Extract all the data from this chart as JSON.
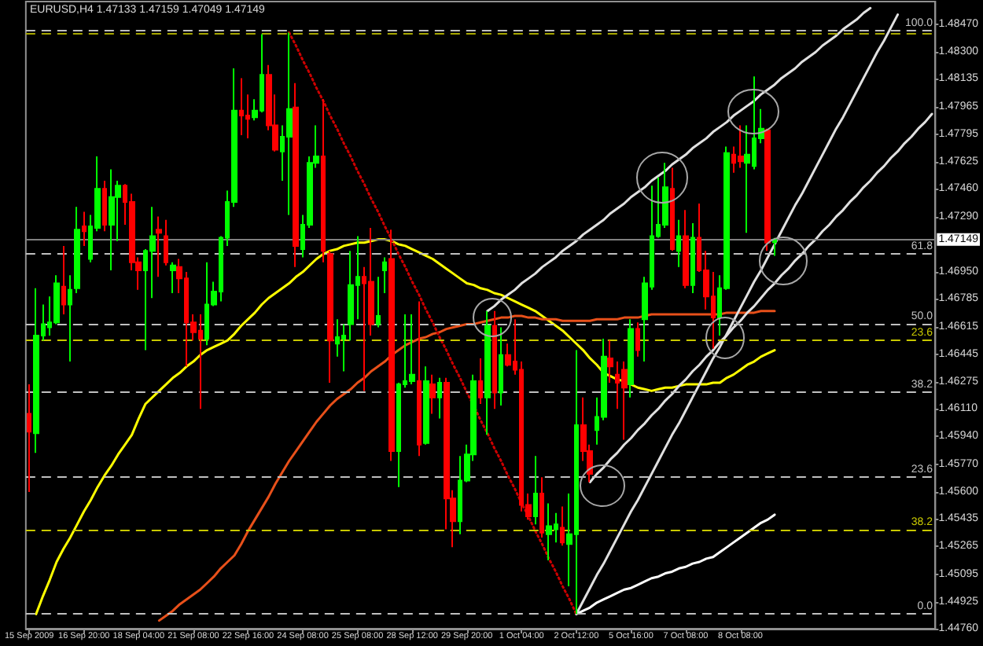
{
  "chart_data": {
    "type": "candlestick",
    "title": "EURUSD,H4 1.47133 1.47159 1.47049 1.47149",
    "categories": [
      "15 Sep 2009",
      null,
      null,
      null,
      null,
      null,
      null,
      null,
      "16 Sep 20:00",
      null,
      null,
      null,
      null,
      null,
      null,
      null,
      "18 Sep 04:00",
      null,
      null,
      null,
      null,
      null,
      null,
      null,
      "21 Sep 08:00",
      null,
      null,
      null,
      null,
      null,
      null,
      null,
      "22 Sep 16:00",
      null,
      null,
      null,
      null,
      null,
      null,
      null,
      "24 Sep 08:00",
      null,
      null,
      null,
      null,
      null,
      null,
      null,
      "25 Sep 08:00",
      null,
      null,
      null,
      null,
      null,
      null,
      null,
      "28 Sep 12:00",
      null,
      null,
      null,
      null,
      null,
      null,
      null,
      "29 Sep 20:00",
      null,
      null,
      null,
      null,
      null,
      null,
      null,
      "1 Oct 04:00",
      null,
      null,
      null,
      null,
      null,
      null,
      null,
      "2 Oct 12:00",
      null,
      null,
      null,
      null,
      null,
      null,
      null,
      "5 Oct 16:00",
      null,
      null,
      null,
      null,
      null,
      null,
      null,
      "7 Oct 08:00",
      null,
      null,
      null,
      null,
      null,
      null,
      null,
      "8 Oct 08:00",
      null,
      null,
      null,
      null,
      null,
      null,
      null,
      null,
      null,
      null,
      null,
      null,
      null,
      null,
      null,
      null,
      null,
      null,
      null,
      null,
      null,
      null,
      null,
      null,
      null,
      null,
      null,
      null
    ],
    "ohlc": [
      [
        1.4608,
        1.4626,
        1.456,
        1.4597
      ],
      [
        1.4596,
        1.4685,
        1.4584,
        1.4656
      ],
      [
        1.4656,
        1.4675,
        1.4653,
        1.4663
      ],
      [
        1.4661,
        1.468,
        1.4656,
        1.4664
      ],
      [
        1.4664,
        1.4693,
        1.4663,
        1.4688
      ],
      [
        1.4686,
        1.4711,
        1.4669,
        1.4675
      ],
      [
        1.4675,
        1.4693,
        1.464,
        1.4684
      ],
      [
        1.4685,
        1.4735,
        1.4682,
        1.4721
      ],
      [
        1.4723,
        1.4732,
        1.4711,
        1.472
      ],
      [
        1.4703,
        1.473,
        1.4701,
        1.4723
      ],
      [
        1.4722,
        1.4766,
        1.472,
        1.4746
      ],
      [
        1.4746,
        1.4751,
        1.472,
        1.4724
      ],
      [
        1.4724,
        1.4758,
        1.4696,
        1.4741
      ],
      [
        1.4741,
        1.4751,
        1.4714,
        1.4748
      ],
      [
        1.4748,
        1.4749,
        1.4724,
        1.4738
      ],
      [
        1.4738,
        1.4743,
        1.4696,
        1.4701
      ],
      [
        1.4701,
        1.4704,
        1.4684,
        1.4696
      ],
      [
        1.4696,
        1.4709,
        1.4647,
        1.4708
      ],
      [
        1.4708,
        1.4735,
        1.4679,
        1.4717
      ],
      [
        1.4721,
        1.4729,
        1.4692,
        1.4719
      ],
      [
        1.4717,
        1.4727,
        1.4699,
        1.4701
      ],
      [
        1.4696,
        1.4701,
        1.4682,
        1.4699
      ],
      [
        1.4698,
        1.4703,
        1.4682,
        1.4691
      ],
      [
        1.4691,
        1.4695,
        1.4637,
        1.4664
      ],
      [
        1.4664,
        1.4669,
        1.4653,
        1.4658
      ],
      [
        1.4659,
        1.4669,
        1.4611,
        1.4654
      ],
      [
        1.4654,
        1.4701,
        1.465,
        1.4675
      ],
      [
        1.4675,
        1.4689,
        1.4674,
        1.4683
      ],
      [
        1.4683,
        1.4717,
        1.4677,
        1.4716
      ],
      [
        1.4716,
        1.4745,
        1.4711,
        1.4738
      ],
      [
        1.4738,
        1.482,
        1.4735,
        1.4794
      ],
      [
        1.4794,
        1.4814,
        1.4779,
        1.4791
      ],
      [
        1.4791,
        1.4804,
        1.4777,
        1.4789
      ],
      [
        1.479,
        1.4801,
        1.4788,
        1.4794
      ],
      [
        1.4794,
        1.4841,
        1.4793,
        1.4816
      ],
      [
        1.4816,
        1.4822,
        1.4782,
        1.4785
      ],
      [
        1.4785,
        1.4804,
        1.4769,
        1.477
      ],
      [
        1.4769,
        1.4785,
        1.4751,
        1.4778
      ],
      [
        1.4778,
        1.4842,
        1.473,
        1.4795
      ],
      [
        1.4796,
        1.4811,
        1.4698,
        1.4711
      ],
      [
        1.4709,
        1.473,
        1.4704,
        1.4724
      ],
      [
        1.4724,
        1.4766,
        1.4722,
        1.4762
      ],
      [
        1.4762,
        1.4785,
        1.4759,
        1.4766
      ],
      [
        1.4766,
        1.4801,
        1.4701,
        1.4708
      ],
      [
        1.4706,
        1.4708,
        1.4627,
        1.4653
      ],
      [
        1.4651,
        1.4666,
        1.4643,
        1.4655
      ],
      [
        1.4654,
        1.4663,
        1.4634,
        1.4656
      ],
      [
        1.4663,
        1.4708,
        1.4653,
        1.4687
      ],
      [
        1.4687,
        1.4717,
        1.4666,
        1.4692
      ],
      [
        1.4692,
        1.4698,
        1.4622,
        1.4688
      ],
      [
        1.4689,
        1.4722,
        1.4656,
        1.4663
      ],
      [
        1.4663,
        1.4692,
        1.4661,
        1.4668
      ],
      [
        1.4696,
        1.4704,
        1.4682,
        1.4701
      ],
      [
        1.4703,
        1.4721,
        1.4579,
        1.4585
      ],
      [
        1.4585,
        1.4627,
        1.4563,
        1.4626
      ],
      [
        1.4626,
        1.4669,
        1.4624,
        1.4628
      ],
      [
        1.4628,
        1.4669,
        1.4626,
        1.4632
      ],
      [
        1.4628,
        1.4677,
        1.4582,
        1.4589
      ],
      [
        1.459,
        1.4637,
        1.4589,
        1.4628
      ],
      [
        1.4626,
        1.4632,
        1.4608,
        1.4618
      ],
      [
        1.4618,
        1.463,
        1.4605,
        1.4627
      ],
      [
        1.4627,
        1.463,
        1.4537,
        1.4556
      ],
      [
        1.4556,
        1.4561,
        1.4526,
        1.4542
      ],
      [
        1.4542,
        1.4582,
        1.4534,
        1.4567
      ],
      [
        1.4567,
        1.4589,
        1.4566,
        1.4583
      ],
      [
        1.4583,
        1.4632,
        1.4579,
        1.4628
      ],
      [
        1.4628,
        1.4642,
        1.4614,
        1.4618
      ],
      [
        1.4618,
        1.4671,
        1.4595,
        1.4662
      ],
      [
        1.4662,
        1.4671,
        1.4611,
        1.4621
      ],
      [
        1.4621,
        1.4661,
        1.4613,
        1.4644
      ],
      [
        1.4644,
        1.4651,
        1.4637,
        1.4638
      ],
      [
        1.464,
        1.4666,
        1.4632,
        1.4635
      ],
      [
        1.4635,
        1.464,
        1.4548,
        1.4552
      ],
      [
        1.4552,
        1.4559,
        1.4543,
        1.4545
      ],
      [
        1.4545,
        1.4582,
        1.454,
        1.4559
      ],
      [
        1.4559,
        1.4569,
        1.4532,
        1.4535
      ],
      [
        1.4534,
        1.4553,
        1.4518,
        1.4539
      ],
      [
        1.4537,
        1.4547,
        1.4529,
        1.454
      ],
      [
        1.4538,
        1.4551,
        1.4527,
        1.4529
      ],
      [
        1.4528,
        1.4559,
        1.4502,
        1.4534
      ],
      [
        1.4534,
        1.4647,
        1.4485,
        1.4601
      ],
      [
        1.4601,
        1.4618,
        1.4579,
        1.4585
      ],
      [
        1.4585,
        1.4589,
        1.4566,
        1.4571
      ],
      [
        1.4598,
        1.4618,
        1.4589,
        1.4606
      ],
      [
        1.4606,
        1.4654,
        1.4604,
        1.4643
      ],
      [
        1.4642,
        1.4653,
        1.4627,
        1.4637
      ],
      [
        1.4632,
        1.464,
        1.4611,
        1.4627
      ],
      [
        1.4635,
        1.464,
        1.4592,
        1.4624
      ],
      [
        1.4626,
        1.4666,
        1.4618,
        1.466
      ],
      [
        1.466,
        1.4664,
        1.4643,
        1.4647
      ],
      [
        1.4666,
        1.4692,
        1.464,
        1.4688
      ],
      [
        1.4686,
        1.4748,
        1.4684,
        1.4717
      ],
      [
        1.4717,
        1.4753,
        1.4716,
        1.4724
      ],
      [
        1.4724,
        1.4762,
        1.4722,
        1.4747
      ],
      [
        1.4746,
        1.4759,
        1.4708,
        1.4709
      ],
      [
        1.4708,
        1.4727,
        1.4698,
        1.4717
      ],
      [
        1.4717,
        1.4733,
        1.4685,
        1.4687
      ],
      [
        1.4687,
        1.4725,
        1.4682,
        1.4716
      ],
      [
        1.4716,
        1.4737,
        1.4695,
        1.4696
      ],
      [
        1.4696,
        1.4708,
        1.4672,
        1.468
      ],
      [
        1.468,
        1.4695,
        1.4648,
        1.4667
      ],
      [
        1.4667,
        1.4693,
        1.4656,
        1.4685
      ],
      [
        1.4685,
        1.4772,
        1.4684,
        1.4768
      ],
      [
        1.4767,
        1.4772,
        1.4756,
        1.4762
      ],
      [
        1.4766,
        1.4785,
        1.4759,
        1.4763
      ],
      [
        1.4762,
        1.4785,
        1.4719,
        1.4767
      ],
      [
        1.476,
        1.4815,
        1.4758,
        1.4777
      ],
      [
        1.4777,
        1.4795,
        1.4774,
        1.4783
      ],
      [
        1.4782,
        1.4783,
        1.4708,
        1.4713
      ],
      [
        1.47133,
        1.47159,
        1.47049,
        1.47149
      ],
      null,
      null,
      null,
      null,
      null,
      null,
      null,
      null,
      null,
      null,
      null,
      null,
      null,
      null,
      null,
      null,
      null,
      null,
      null,
      null,
      null,
      null,
      null
    ],
    "colors": [
      "#ff0000",
      "#00ff00",
      "#00ff00",
      "#00ff00",
      "#00ff00",
      "#ff0000",
      "#00ff00",
      "#00ff00",
      "#ff0000",
      "#00ff00",
      "#00ff00",
      "#ff0000",
      "#00ff00",
      "#00ff00",
      "#ff0000",
      "#ff0000",
      "#ff0000",
      "#00ff00",
      "#00ff00",
      "#ff0000",
      "#ff0000",
      "#00ff00",
      "#ff0000",
      "#ff0000",
      "#ff0000",
      "#ff0000",
      "#00ff00",
      "#00ff00",
      "#00ff00",
      "#00ff00",
      "#00ff00",
      "#ff0000",
      "#ff0000",
      "#00ff00",
      "#00ff00",
      "#ff0000",
      "#ff0000",
      "#00ff00",
      "#00ff00",
      "#ff0000",
      "#00ff00",
      "#00ff00",
      "#00ff00",
      "#ff0000",
      "#ff0000",
      "#00ff00",
      "#00ff00",
      "#00ff00",
      "#00ff00",
      "#ff0000",
      "#ff0000",
      "#00ff00",
      "#00ff00",
      "#ff0000",
      "#00ff00",
      "#00ff00",
      "#00ff00",
      "#ff0000",
      "#00ff00",
      "#ff0000",
      "#00ff00",
      "#ff0000",
      "#ff0000",
      "#00ff00",
      "#00ff00",
      "#00ff00",
      "#ff0000",
      "#00ff00",
      "#ff0000",
      "#00ff00",
      "#ff0000",
      "#ff0000",
      "#ff0000",
      "#ff0000",
      "#00ff00",
      "#ff0000",
      "#00ff00",
      "#00ff00",
      "#ff0000",
      "#00ff00",
      "#00ff00",
      "#ff0000",
      "#ff0000",
      "#00ff00",
      "#00ff00",
      "#ff0000",
      "#ff0000",
      "#ff0000",
      "#00ff00",
      "#ff0000",
      "#00ff00",
      "#00ff00",
      "#00ff00",
      "#00ff00",
      "#ff0000",
      "#00ff00",
      "#ff0000",
      "#00ff00",
      "#ff0000",
      "#ff0000",
      "#ff0000",
      "#00ff00",
      "#00ff00",
      "#ff0000",
      "#ff0000",
      "#00ff00",
      "#00ff00",
      "#00ff00",
      "#ff0000",
      "#00ff00",
      null,
      null,
      null,
      null,
      null,
      null,
      null,
      null,
      null,
      null,
      null,
      null,
      null,
      null,
      null,
      null,
      null,
      null,
      null,
      null,
      null,
      null,
      null
    ],
    "ylim": [
      1.4476,
      1.4861
    ],
    "yticks": [
      {
        "value": 1.4847,
        "label": "1.48470"
      },
      {
        "value": 1.483,
        "label": "1.48300"
      },
      1.48135,
      1.47965,
      1.47795,
      1.47625,
      {
        "value": 1.4746,
        "label": "1.47460"
      },
      {
        "value": 1.4729,
        "label": "1.47290"
      },
      {
        "value": 1.4695,
        "label": "1.46950"
      },
      1.46785,
      1.46615,
      1.46445,
      1.46275,
      {
        "value": 1.4611,
        "label": "1.46110"
      },
      {
        "value": 1.4594,
        "label": "1.45940"
      },
      {
        "value": 1.4577,
        "label": "1.45770"
      },
      {
        "value": 1.456,
        "label": "1.45600"
      },
      1.45435,
      1.45265,
      1.45095,
      1.44925,
      {
        "value": 1.4476,
        "label": "1.44760"
      }
    ],
    "series": [
      {
        "type": "line",
        "color": "#ffff00",
        "values": [
          null,
          1.4485,
          1.4496,
          1.4506,
          1.4517,
          1.4525,
          1.4532,
          1.454,
          1.4548,
          1.4555,
          1.4563,
          1.457,
          1.4576,
          1.4583,
          1.4589,
          1.4595,
          1.4605,
          1.4614,
          1.4618,
          1.4622,
          1.4626,
          1.463,
          1.4633,
          1.4637,
          1.464,
          1.4644,
          1.4647,
          1.4649,
          1.4651,
          1.4653,
          1.4657,
          1.4662,
          1.4666,
          1.467,
          1.4675,
          1.4679,
          1.4682,
          1.4685,
          1.4688,
          1.4692,
          1.4695,
          1.4699,
          1.4703,
          1.4706,
          1.4708,
          1.4709,
          1.4711,
          1.4712,
          1.4713,
          1.4713,
          1.4714,
          1.4715,
          1.4715,
          1.4714,
          1.4712,
          1.4711,
          1.4709,
          1.4707,
          1.4705,
          1.4703,
          1.47,
          1.4697,
          1.4694,
          1.4691,
          1.4688,
          1.4687,
          1.4685,
          1.4684,
          1.4682,
          1.4681,
          1.4679,
          1.4677,
          1.4675,
          1.4673,
          1.4671,
          1.4668,
          1.4665,
          1.4662,
          1.4659,
          1.4655,
          1.4651,
          1.4647,
          1.4642,
          1.4638,
          1.4633,
          1.4631,
          1.4629,
          1.4628,
          1.4626,
          1.4624,
          1.4623,
          1.4622,
          1.4623,
          1.4624,
          1.4624,
          1.4625,
          1.4626,
          1.4626,
          1.4626,
          1.4626,
          1.4627,
          1.4627,
          1.463,
          1.4632,
          1.4635,
          1.4638,
          1.464,
          1.4643,
          1.4645,
          1.4647,
          null,
          null,
          null,
          null,
          null,
          null,
          null,
          null,
          null,
          null,
          null,
          null,
          null,
          null,
          null,
          null,
          null,
          null,
          null,
          null,
          null,
          null,
          null
        ]
      },
      {
        "type": "line",
        "color": "#e8501a",
        "values": [
          null,
          null,
          null,
          null,
          null,
          null,
          null,
          null,
          null,
          null,
          null,
          null,
          null,
          null,
          null,
          null,
          null,
          null,
          null,
          1.4481,
          1.4484,
          1.4487,
          1.4491,
          1.4494,
          1.4497,
          1.45,
          1.4504,
          1.4508,
          1.4513,
          1.4517,
          1.4521,
          1.4528,
          1.4536,
          1.4543,
          1.455,
          1.4557,
          1.4565,
          1.4572,
          1.4579,
          1.4585,
          1.4591,
          1.4597,
          1.4603,
          1.4608,
          1.4613,
          1.4617,
          1.462,
          1.4623,
          1.4627,
          1.463,
          1.4634,
          1.4637,
          1.464,
          1.4644,
          1.4647,
          1.465,
          1.4652,
          1.4654,
          1.4655,
          1.4657,
          1.4658,
          1.466,
          1.4661,
          1.4662,
          1.4663,
          1.4663,
          1.4664,
          1.4665,
          1.4666,
          1.4667,
          1.4667,
          1.4668,
          1.4668,
          1.4667,
          1.4667,
          1.4666,
          1.4666,
          1.4666,
          1.4665,
          1.4665,
          1.4665,
          1.4665,
          1.4665,
          1.4666,
          1.4666,
          1.4666,
          1.4666,
          1.4667,
          1.4667,
          1.4667,
          1.4668,
          1.4669,
          1.4669,
          1.4669,
          1.4669,
          1.4669,
          1.4669,
          1.4669,
          1.4669,
          1.4669,
          1.4669,
          1.4669,
          1.467,
          1.467,
          1.467,
          1.467,
          1.467,
          1.4671,
          1.4671,
          1.4671,
          null,
          null,
          null,
          null,
          null,
          null,
          null,
          null,
          null,
          null,
          null,
          null,
          null,
          null,
          null,
          null,
          null,
          null,
          null,
          null,
          null,
          null,
          null
        ]
      },
      {
        "type": "line",
        "color": "#ffffff",
        "values": [
          null,
          null,
          null,
          null,
          null,
          null,
          null,
          null,
          null,
          null,
          null,
          null,
          null,
          null,
          null,
          null,
          null,
          null,
          null,
          null,
          null,
          null,
          null,
          null,
          null,
          null,
          null,
          null,
          null,
          null,
          null,
          null,
          null,
          null,
          null,
          null,
          null,
          null,
          null,
          null,
          null,
          null,
          null,
          null,
          null,
          null,
          null,
          null,
          null,
          null,
          null,
          null,
          null,
          null,
          null,
          null,
          null,
          null,
          null,
          null,
          null,
          null,
          null,
          null,
          null,
          null,
          null,
          null,
          null,
          null,
          null,
          null,
          null,
          null,
          null,
          null,
          null,
          null,
          null,
          null,
          1.4485,
          1.4487,
          1.4489,
          1.4492,
          1.4494,
          1.4496,
          1.4498,
          1.45,
          1.4501,
          1.4503,
          1.4505,
          1.4507,
          1.4508,
          1.451,
          1.4511,
          1.4513,
          1.4514,
          1.4516,
          1.4517,
          1.4519,
          1.452,
          1.4523,
          1.4526,
          1.4529,
          1.4532,
          1.4535,
          1.4538,
          1.4541,
          1.4543,
          1.4546,
          null,
          null,
          null,
          null,
          null,
          null,
          null,
          null,
          null,
          null,
          null,
          null,
          null,
          null,
          null,
          null,
          null,
          null,
          null,
          null,
          null,
          null,
          null
        ]
      },
      {
        "type": "line",
        "color": "#e0e0e0",
        "values": [
          null,
          null,
          null,
          null,
          null,
          null,
          null,
          null,
          null,
          null,
          null,
          null,
          null,
          null,
          null,
          null,
          null,
          null,
          null,
          null,
          null,
          null,
          null,
          null,
          null,
          null,
          null,
          null,
          null,
          null,
          null,
          null,
          null,
          null,
          null,
          null,
          null,
          null,
          null,
          null,
          null,
          null,
          null,
          null,
          null,
          null,
          null,
          null,
          null,
          null,
          null,
          null,
          null,
          null,
          null,
          null,
          null,
          null,
          null,
          null,
          null,
          null,
          null,
          null,
          null,
          null,
          null,
          1.4671,
          1.4674,
          1.4678,
          1.4681,
          1.4684,
          1.4688,
          1.4691,
          1.4694,
          1.4698,
          1.4701,
          1.4704,
          1.4708,
          1.4711,
          1.4714,
          1.4718,
          1.4721,
          1.4724,
          1.4727,
          1.4731,
          1.4734,
          1.4737,
          1.4741,
          1.4744,
          1.4747,
          1.4751,
          1.4754,
          1.4757,
          1.4761,
          1.4764,
          1.4767,
          1.4771,
          1.4774,
          1.4777,
          1.4781,
          1.4784,
          1.4787,
          1.4791,
          1.4794,
          1.4797,
          1.48,
          1.4804,
          1.4807,
          1.481,
          1.4814,
          1.4817,
          1.482,
          1.4824,
          1.4827,
          1.483,
          1.4834,
          1.4837,
          1.484,
          1.4844,
          1.4847,
          1.485,
          1.4854,
          1.4857,
          null,
          null,
          null,
          null,
          null,
          null,
          null,
          null,
          null
        ]
      },
      {
        "type": "line",
        "color": "#e0e0e0",
        "values": [
          null,
          null,
          null,
          null,
          null,
          null,
          null,
          null,
          null,
          null,
          null,
          null,
          null,
          null,
          null,
          null,
          null,
          null,
          null,
          null,
          null,
          null,
          null,
          null,
          null,
          null,
          null,
          null,
          null,
          null,
          null,
          null,
          null,
          null,
          null,
          null,
          null,
          null,
          null,
          null,
          null,
          null,
          null,
          null,
          null,
          null,
          null,
          null,
          null,
          null,
          null,
          null,
          null,
          null,
          null,
          null,
          null,
          null,
          null,
          null,
          null,
          null,
          null,
          null,
          null,
          null,
          null,
          null,
          null,
          null,
          null,
          null,
          null,
          null,
          null,
          null,
          null,
          null,
          null,
          null,
          1.4485,
          1.4493,
          1.4501,
          1.4509,
          1.4516,
          1.4524,
          1.4532,
          1.454,
          1.4548,
          1.4555,
          1.4563,
          1.4571,
          1.4579,
          1.4587,
          1.4595,
          1.4602,
          1.461,
          1.4618,
          1.4626,
          1.4634,
          1.4642,
          1.4649,
          1.4657,
          1.4665,
          1.4673,
          1.4681,
          1.4689,
          1.4696,
          1.4704,
          1.4712,
          1.472,
          1.4728,
          1.4736,
          1.4743,
          1.4751,
          1.4759,
          1.4767,
          1.4775,
          1.4783,
          1.479,
          1.4798,
          1.4806,
          1.4814,
          1.4822,
          1.483,
          1.4837,
          1.4845,
          1.4853,
          null,
          null,
          null,
          null,
          null
        ]
      },
      {
        "type": "line",
        "color": "#e0e0e0",
        "values": [
          null,
          null,
          null,
          null,
          null,
          null,
          null,
          null,
          null,
          null,
          null,
          null,
          null,
          null,
          null,
          null,
          null,
          null,
          null,
          null,
          null,
          null,
          null,
          null,
          null,
          null,
          null,
          null,
          null,
          null,
          null,
          null,
          null,
          null,
          null,
          null,
          null,
          null,
          null,
          null,
          null,
          null,
          null,
          null,
          null,
          null,
          null,
          null,
          null,
          null,
          null,
          null,
          null,
          null,
          null,
          null,
          null,
          null,
          null,
          null,
          null,
          null,
          null,
          null,
          null,
          null,
          null,
          null,
          null,
          null,
          null,
          null,
          null,
          null,
          null,
          null,
          null,
          null,
          null,
          null,
          null,
          null,
          1.4566,
          1.4571,
          1.4575,
          1.458,
          1.4584,
          1.4589,
          1.4593,
          1.4598,
          1.4602,
          1.4607,
          1.4611,
          1.4616,
          1.462,
          1.4625,
          1.4629,
          1.4634,
          1.4638,
          1.4643,
          1.4647,
          1.4652,
          1.4656,
          1.4661,
          1.4665,
          1.467,
          1.4674,
          1.4679,
          1.4684,
          1.4688,
          1.4693,
          1.4697,
          1.4702,
          1.4706,
          1.4711,
          1.4715,
          1.472,
          1.4724,
          1.4729,
          1.4733,
          1.4738,
          1.4742,
          1.4747,
          1.4751,
          1.4756,
          1.476,
          1.4765,
          1.4769,
          1.4774,
          1.4778,
          1.4783,
          1.4787,
          1.4792
        ]
      },
      {
        "type": "line",
        "color": "#cc0000",
        "line_style": "dotted",
        "values": [
          null,
          null,
          null,
          null,
          null,
          null,
          null,
          null,
          null,
          null,
          null,
          null,
          null,
          null,
          null,
          null,
          null,
          null,
          null,
          null,
          null,
          null,
          null,
          null,
          null,
          null,
          null,
          null,
          null,
          null,
          null,
          null,
          null,
          null,
          null,
          null,
          null,
          null,
          1.4842,
          1.4834,
          1.4825,
          1.4817,
          1.4808,
          1.48,
          1.4791,
          1.4783,
          1.4774,
          1.4766,
          1.4757,
          1.4749,
          1.474,
          1.4732,
          1.4723,
          1.4715,
          1.4706,
          1.4698,
          1.4689,
          1.4681,
          1.4672,
          1.4664,
          1.4655,
          1.4647,
          1.4638,
          1.463,
          1.4621,
          1.4613,
          1.4604,
          1.4596,
          1.4587,
          1.4579,
          1.457,
          1.4562,
          1.4553,
          1.4545,
          1.4536,
          1.4528,
          1.4519,
          1.4511,
          1.4502,
          1.4494,
          1.4485,
          null,
          null,
          null,
          null,
          null,
          null,
          null,
          null,
          null,
          null,
          null,
          null,
          null,
          null,
          null,
          null,
          null,
          null,
          null,
          null,
          null,
          null,
          null,
          null,
          null,
          null,
          null,
          null,
          null,
          null,
          null,
          null,
          null,
          null,
          null,
          null,
          null,
          null,
          null,
          null,
          null,
          null,
          null,
          null,
          null,
          null,
          null,
          null,
          null,
          null,
          null,
          null
        ]
      }
    ],
    "ref_lines": [
      {
        "axis": "y",
        "value": 1.4843,
        "color": "#c0c0c0",
        "line_style": "dashed"
      },
      {
        "axis": "y",
        "value": 1.4841,
        "color": "#a8a800",
        "line_style": "dashed"
      },
      {
        "axis": "y",
        "value": 1.4706,
        "color": "#c0c0c0",
        "line_style": "dashed"
      },
      {
        "axis": "y",
        "value": 1.4663,
        "color": "#c0c0c0",
        "line_style": "dashed"
      },
      {
        "axis": "y",
        "value": 1.4653,
        "color": "#c8c800",
        "line_style": "dashed"
      },
      {
        "axis": "y",
        "value": 1.4621,
        "color": "#c0c0c0",
        "line_style": "dashed"
      },
      {
        "axis": "y",
        "value": 1.4569,
        "color": "#c0c0c0",
        "line_style": "dashed"
      },
      {
        "axis": "y",
        "value": 1.4537,
        "color": "#c8c800",
        "line_style": "dashed"
      },
      {
        "axis": "y",
        "value": 1.4485,
        "color": "#c0c0c0",
        "line_style": "dashed"
      },
      {
        "axis": "y",
        "value": 1.47149,
        "label": "1.47149",
        "color": "#808080",
        "line_style": "solid"
      }
    ],
    "annotations": [
      {
        "text": "100.0",
        "y": 1.4843
      },
      {
        "text": "61.8",
        "y": 1.4706
      },
      {
        "text": "50.0",
        "y": 1.4663
      },
      {
        "text": "23.6",
        "y": 1.4653
      },
      {
        "text": "38.2",
        "y": 1.4621
      },
      {
        "text": "23.6",
        "y": 1.4569
      },
      {
        "text": "38.2",
        "y": 1.4537
      },
      {
        "text": "0.0",
        "y": 1.4485
      }
    ]
  }
}
